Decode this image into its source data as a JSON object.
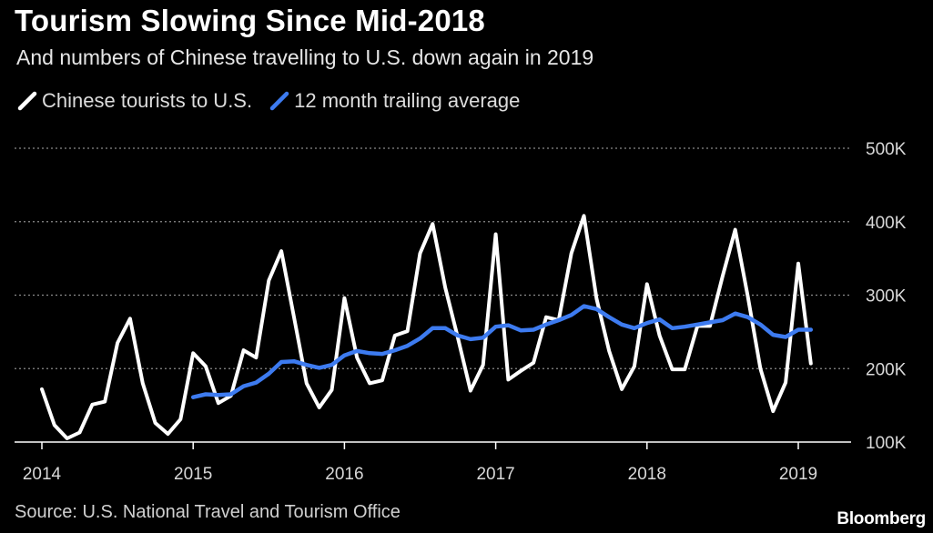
{
  "header": {
    "title": "Tourism Slowing Since Mid-2018",
    "subtitle": "And numbers of Chinese travelling to U.S. down again in 2019"
  },
  "legend": {
    "items": [
      {
        "label": "Chinese tourists to U.S.",
        "color": "#ffffff"
      },
      {
        "label": "12 month trailing average",
        "color": "#3d7bf0"
      }
    ]
  },
  "footer": {
    "source": "Source: U.S. National Travel and Tourism Office",
    "brand": "Bloomberg"
  },
  "chart_data": {
    "type": "line",
    "title": "Tourism Slowing Since Mid-2018",
    "ylim": [
      100000,
      500000
    ],
    "y_ticks": [
      {
        "value": 100000,
        "label": "100K"
      },
      {
        "value": 200000,
        "label": "200K"
      },
      {
        "value": 300000,
        "label": "300K"
      },
      {
        "value": 400000,
        "label": "400K"
      },
      {
        "value": 500000,
        "label": "500K"
      }
    ],
    "x_range": [
      2014,
      2019.35
    ],
    "x_ticks": [
      {
        "value": 2014,
        "label": "2014"
      },
      {
        "value": 2015,
        "label": "2015"
      },
      {
        "value": 2016,
        "label": "2016"
      },
      {
        "value": 2017,
        "label": "2017"
      },
      {
        "value": 2018,
        "label": "2018"
      },
      {
        "value": 2019,
        "label": "2019"
      }
    ],
    "series": [
      {
        "name": "Chinese tourists to U.S.",
        "color": "#ffffff",
        "start": 2014,
        "step": 0.0833333,
        "values": [
          172000,
          123000,
          105000,
          113000,
          151000,
          155000,
          235000,
          268000,
          180000,
          126000,
          111000,
          131000,
          221000,
          203000,
          153000,
          163000,
          225000,
          215000,
          320000,
          360000,
          270000,
          180000,
          147000,
          171000,
          296000,
          215000,
          180000,
          184000,
          245000,
          251000,
          357000,
          397000,
          310000,
          242000,
          170000,
          205000,
          383000,
          185000,
          197000,
          208000,
          270000,
          266000,
          357000,
          408000,
          295000,
          224000,
          172000,
          203000,
          315000,
          245000,
          199000,
          199000,
          258000,
          258000,
          326000,
          389000,
          298000,
          200000,
          142000,
          181000,
          343000,
          207000
        ]
      },
      {
        "name": "12 month trailing average",
        "color": "#3d7bf0",
        "start": 2015,
        "step": 0.0833333,
        "values": [
          161000,
          165000,
          164000,
          165000,
          176000,
          181000,
          193000,
          209000,
          210000,
          205000,
          201000,
          205000,
          218000,
          224000,
          221000,
          220000,
          225000,
          231000,
          241000,
          255000,
          255000,
          245000,
          240000,
          242000,
          257000,
          259000,
          252000,
          253000,
          260000,
          266000,
          273000,
          285000,
          281000,
          270000,
          260000,
          255000,
          262000,
          267000,
          255000,
          257000,
          260000,
          263000,
          266000,
          275000,
          270000,
          260000,
          246000,
          243000,
          253000,
          253000
        ]
      }
    ]
  }
}
